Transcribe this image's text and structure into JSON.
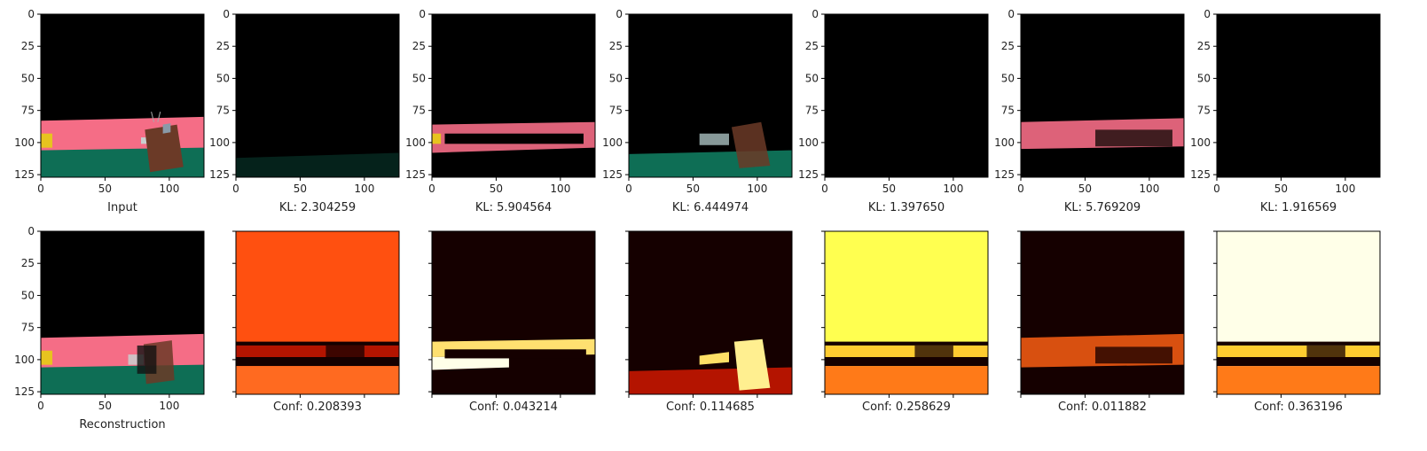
{
  "chart_data": {
    "type": "heatmap",
    "layout": {
      "rows": 2,
      "cols": 7
    },
    "axis": {
      "xlim": [
        0,
        127
      ],
      "ylim_top_to_bottom": [
        0,
        127
      ],
      "x_ticks": [
        0,
        50,
        100
      ],
      "x_tick_labels": [
        "0",
        "50",
        "100"
      ],
      "y_ticks": [
        0,
        25,
        50,
        75,
        100,
        125
      ],
      "y_tick_labels": [
        "0",
        "25",
        "50",
        "75",
        "100",
        "125"
      ]
    },
    "panels": [
      {
        "row": 0,
        "col": 0,
        "caption": "Input",
        "kind": "rgb",
        "content": "scene_full",
        "show_x_tick_labels": true,
        "show_y_tick_labels": true
      },
      {
        "row": 0,
        "col": 1,
        "caption": "KL: 2.304259",
        "kind": "rgb",
        "content": "faint_floor",
        "show_x_tick_labels": true,
        "show_y_tick_labels": true
      },
      {
        "row": 0,
        "col": 2,
        "caption": "KL: 5.904564",
        "kind": "rgb",
        "content": "wall_strip",
        "show_x_tick_labels": true,
        "show_y_tick_labels": true
      },
      {
        "row": 0,
        "col": 3,
        "caption": "KL: 6.444974",
        "kind": "rgb",
        "content": "floor_and_objects",
        "show_x_tick_labels": true,
        "show_y_tick_labels": true
      },
      {
        "row": 0,
        "col": 4,
        "caption": "KL: 1.397650",
        "kind": "rgb",
        "content": "empty",
        "show_x_tick_labels": true,
        "show_y_tick_labels": true
      },
      {
        "row": 0,
        "col": 5,
        "caption": "KL: 5.769209",
        "kind": "rgb",
        "content": "wall_strip_objects",
        "show_x_tick_labels": true,
        "show_y_tick_labels": true
      },
      {
        "row": 0,
        "col": 6,
        "caption": "KL: 1.916569",
        "kind": "rgb",
        "content": "empty",
        "show_x_tick_labels": true,
        "show_y_tick_labels": true
      },
      {
        "row": 1,
        "col": 0,
        "caption": "Reconstruction",
        "kind": "rgb",
        "content": "scene_recon",
        "show_x_tick_labels": true,
        "show_y_tick_labels": true
      },
      {
        "row": 1,
        "col": 1,
        "caption": "Conf: 0.208393",
        "kind": "heat",
        "content": "heat_orange",
        "show_x_tick_labels": false,
        "show_y_tick_labels": false
      },
      {
        "row": 1,
        "col": 2,
        "caption": "Conf: 0.043214",
        "kind": "heat",
        "content": "heat_wall",
        "show_x_tick_labels": false,
        "show_y_tick_labels": false
      },
      {
        "row": 1,
        "col": 3,
        "caption": "Conf: 0.114685",
        "kind": "heat",
        "content": "heat_floor_objects",
        "show_x_tick_labels": false,
        "show_y_tick_labels": false
      },
      {
        "row": 1,
        "col": 4,
        "caption": "Conf: 0.258629",
        "kind": "heat",
        "content": "heat_yellow",
        "show_x_tick_labels": false,
        "show_y_tick_labels": false
      },
      {
        "row": 1,
        "col": 5,
        "caption": "Conf: 0.011882",
        "kind": "heat",
        "content": "heat_band",
        "show_x_tick_labels": false,
        "show_y_tick_labels": false
      },
      {
        "row": 1,
        "col": 6,
        "caption": "Conf: 0.363196",
        "kind": "heat",
        "content": "heat_white",
        "show_x_tick_labels": false,
        "show_y_tick_labels": false
      }
    ]
  },
  "colors": {
    "background": "#000000",
    "wall_pink": "#f56d86",
    "floor_green": "#0e6e55",
    "object_brown": "#6b3a27",
    "object_yellow": "#e7c41f",
    "car_silver": "#c9cfcf",
    "heat_dark": "#150000",
    "heat_red": "#b41400",
    "heat_orange": "#ff5010",
    "heat_yellow": "#ffff50",
    "heat_white": "#ffffe8"
  }
}
